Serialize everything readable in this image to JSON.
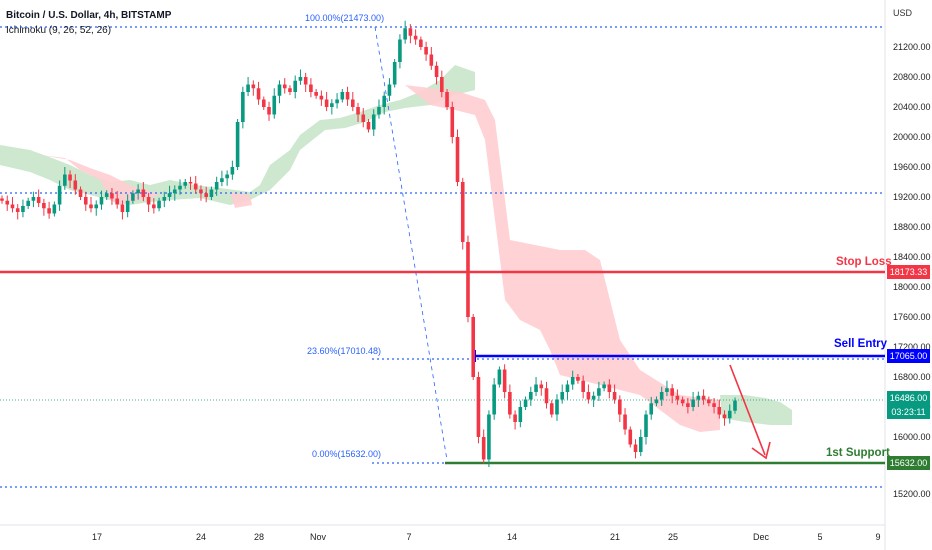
{
  "header": {
    "title": "Bitcoin / U.S. Dollar, 4h, BITSTAMP",
    "indicator": "Ichimoku (9, 26, 52, 26)"
  },
  "axis": {
    "currency": "USD",
    "y_ticks": [
      "21200.00",
      "20800.00",
      "20400.00",
      "20000.00",
      "19600.00",
      "19200.00",
      "18800.00",
      "18400.00",
      "18000.00",
      "17600.00",
      "17200.00",
      "16800.00",
      "16400.00",
      "16000.00",
      "15200.00"
    ],
    "x_ticks": [
      "17",
      "24",
      "28",
      "Nov",
      "7",
      "14",
      "21",
      "25",
      "Dec",
      "5",
      "9"
    ]
  },
  "levels": {
    "stop_loss": {
      "label": "Stop Loss",
      "price": "18173.33",
      "color": "#f23645"
    },
    "sell_entry": {
      "label": "Sell Entry",
      "price": "17065.00",
      "color": "#0000ff"
    },
    "support": {
      "label": "1st Support",
      "price": "15632.00",
      "color": "#2e7d32"
    },
    "current": {
      "price": "16486.00",
      "countdown": "03:23:11",
      "color": "#089981"
    }
  },
  "fib": {
    "top": "100.00%(21473.00)",
    "mid": "23.60%(17010.48)",
    "bottom": "0.00%(15632.00)"
  },
  "colors": {
    "up": "#089981",
    "down": "#f23645",
    "cloud_bull": "#c8e6c9",
    "cloud_bear": "#ffcdd2",
    "dotted": "#2962ff"
  },
  "chart_data": {
    "type": "candlestick",
    "title": "Bitcoin / U.S. Dollar, 4h, BITSTAMP",
    "ylim": [
      15000,
      21600
    ],
    "x_ticks": [
      "17",
      "24",
      "28",
      "Nov",
      "7",
      "14",
      "21",
      "25",
      "Dec",
      "5",
      "9"
    ],
    "horizontal_levels": [
      {
        "name": "Stop Loss",
        "value": 18173.33
      },
      {
        "name": "Sell Entry",
        "value": 17065.0
      },
      {
        "name": "1st Support",
        "value": 15632.0
      },
      {
        "value": 19250
      },
      {
        "value": 15280
      }
    ],
    "fibonacci": [
      {
        "label": "100.00%",
        "value": 21473.0
      },
      {
        "label": "23.60%",
        "value": 17010.48
      },
      {
        "label": "0.00%",
        "value": 15632.0
      }
    ],
    "last_price": 16486.0,
    "closes": [
      19150,
      19100,
      19050,
      19000,
      19080,
      19150,
      19200,
      19120,
      19050,
      18980,
      19100,
      19350,
      19500,
      19420,
      19300,
      19200,
      19100,
      19050,
      19100,
      19200,
      19250,
      19180,
      19100,
      19000,
      19150,
      19250,
      19300,
      19200,
      19100,
      19050,
      19150,
      19200,
      19250,
      19300,
      19350,
      19400,
      19380,
      19300,
      19250,
      19200,
      19300,
      19400,
      19450,
      19500,
      19600,
      20200,
      20600,
      20700,
      20650,
      20500,
      20400,
      20300,
      20550,
      20700,
      20650,
      20600,
      20750,
      20800,
      20700,
      20600,
      20550,
      20500,
      20400,
      20450,
      20500,
      20600,
      20500,
      20400,
      20300,
      20200,
      20100,
      20300,
      20400,
      20550,
      20700,
      21000,
      21300,
      21450,
      21350,
      21300,
      21200,
      21100,
      20950,
      20800,
      20600,
      20400,
      20000,
      19400,
      18600,
      17600,
      16800,
      16000,
      15700,
      16300,
      16700,
      16900,
      16600,
      16300,
      16200,
      16400,
      16500,
      16600,
      16700,
      16650,
      16450,
      16300,
      16500,
      16600,
      16700,
      16800,
      16750,
      16600,
      16500,
      16550,
      16650,
      16700,
      16600,
      16500,
      16300,
      16100,
      15900,
      15800,
      16000,
      16300,
      16450,
      16500,
      16600,
      16650,
      16550,
      16500,
      16450,
      16400,
      16500,
      16550,
      16500,
      16450,
      16400,
      16300,
      16250,
      16350,
      16486
    ]
  }
}
